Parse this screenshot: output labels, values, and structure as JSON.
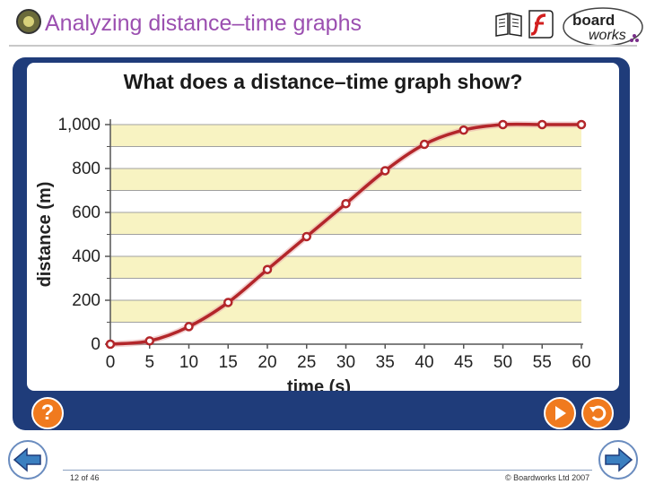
{
  "header": {
    "title": "Analyzing distance–time graphs",
    "brand_line1": "board",
    "brand_line2": "works"
  },
  "main": {
    "question": "What does a distance–time graph show?"
  },
  "chart_data": {
    "type": "line",
    "xlabel": "time (s)",
    "ylabel": "distance (m)",
    "xlim": [
      0,
      60
    ],
    "ylim": [
      0,
      1000
    ],
    "x_ticks": [
      "0",
      "5",
      "10",
      "15",
      "20",
      "25",
      "30",
      "35",
      "40",
      "45",
      "50",
      "55",
      "60"
    ],
    "y_ticks": [
      "0",
      "200",
      "400",
      "600",
      "800",
      "1,000"
    ],
    "x": [
      0,
      5,
      10,
      15,
      20,
      25,
      30,
      35,
      40,
      45,
      50,
      55,
      60
    ],
    "y": [
      0,
      15,
      80,
      190,
      340,
      490,
      640,
      790,
      910,
      975,
      1000,
      1000,
      1000
    ],
    "line_color": "#b3262a",
    "band_color": "#f8f3c2",
    "grid": true
  },
  "buttons": {
    "help_label": "?"
  },
  "footer": {
    "page": "12 of 46",
    "copyright": "© Boardworks Ltd 2007"
  },
  "colors": {
    "frame": "#1f3c7a",
    "accent_orange": "#f07a1e",
    "title": "#9b4fb0",
    "nav_blue": "#3b7fc0"
  }
}
